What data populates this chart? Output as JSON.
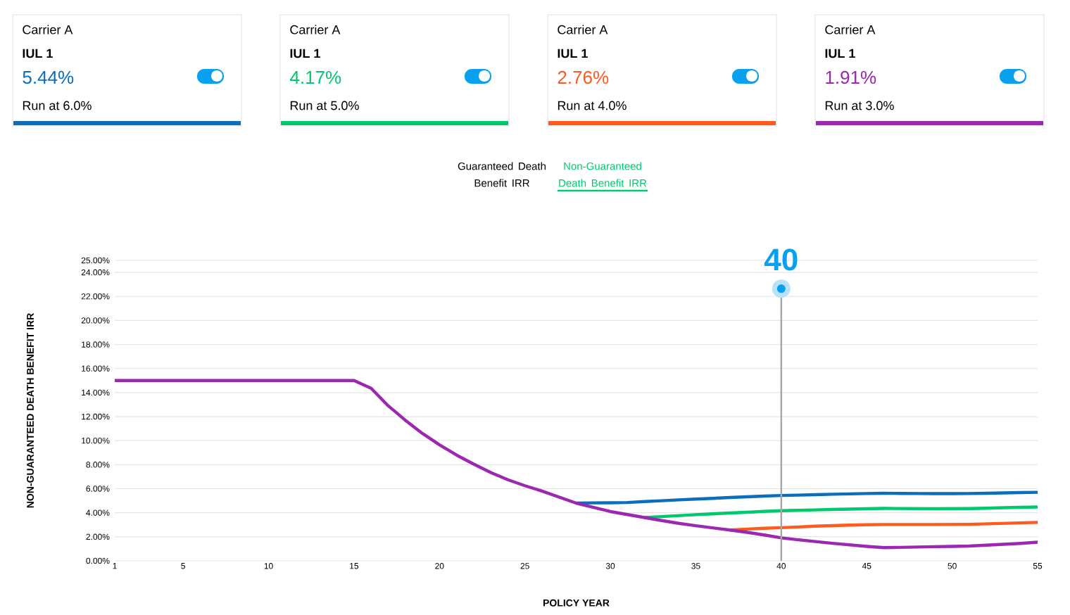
{
  "chart_data": {
    "type": "line",
    "xlabel": "POLICY YEAR",
    "ylabel": "NON-GUARANTEED DEATH BENEFIT IRR",
    "x": [
      1,
      2,
      3,
      4,
      5,
      6,
      7,
      8,
      9,
      10,
      11,
      12,
      13,
      14,
      15,
      16,
      17,
      18,
      19,
      20,
      21,
      22,
      23,
      24,
      25,
      26,
      27,
      28,
      29,
      30,
      31,
      32,
      33,
      34,
      35,
      36,
      37,
      38,
      39,
      40,
      41,
      42,
      43,
      44,
      45,
      46,
      47,
      48,
      49,
      50,
      51,
      52,
      53,
      54,
      55
    ],
    "series": [
      {
        "color": "#0a6ebd",
        "values": [
          null,
          null,
          null,
          null,
          null,
          null,
          null,
          null,
          null,
          null,
          null,
          null,
          null,
          null,
          null,
          null,
          null,
          null,
          null,
          null,
          null,
          null,
          null,
          null,
          null,
          null,
          null,
          4.8,
          4.82,
          4.83,
          4.85,
          4.93,
          5.0,
          5.07,
          5.14,
          5.2,
          5.27,
          5.33,
          5.39,
          5.44,
          5.47,
          5.5,
          5.54,
          5.57,
          5.6,
          5.62,
          5.61,
          5.6,
          5.59,
          5.59,
          5.6,
          5.62,
          5.65,
          5.68,
          5.7
        ]
      },
      {
        "color": "#00c86e",
        "values": [
          null,
          null,
          null,
          null,
          null,
          null,
          null,
          null,
          null,
          null,
          null,
          null,
          null,
          null,
          null,
          null,
          null,
          null,
          null,
          null,
          null,
          null,
          null,
          null,
          null,
          null,
          null,
          null,
          null,
          null,
          null,
          3.6,
          3.68,
          3.76,
          3.84,
          3.91,
          3.98,
          4.04,
          4.11,
          4.17,
          4.2,
          4.24,
          4.27,
          4.3,
          4.33,
          4.36,
          4.35,
          4.34,
          4.33,
          4.34,
          4.35,
          4.38,
          4.42,
          4.45,
          4.48
        ]
      },
      {
        "color": "#ff5a1f",
        "values": [
          null,
          null,
          null,
          null,
          null,
          null,
          null,
          null,
          null,
          null,
          null,
          null,
          null,
          null,
          null,
          null,
          null,
          null,
          null,
          null,
          null,
          null,
          null,
          null,
          null,
          null,
          null,
          null,
          null,
          null,
          null,
          null,
          null,
          null,
          null,
          null,
          2.56,
          2.64,
          2.71,
          2.76,
          2.82,
          2.88,
          2.93,
          2.97,
          3.0,
          3.02,
          3.02,
          3.02,
          3.02,
          3.03,
          3.04,
          3.08,
          3.12,
          3.16,
          3.2
        ]
      },
      {
        "color": "#9c27b0",
        "values": [
          15,
          15,
          15,
          15,
          15,
          15,
          15,
          15,
          15,
          15,
          15,
          15,
          15,
          15,
          15,
          14.36,
          12.9,
          11.7,
          10.6,
          9.65,
          8.8,
          8.05,
          7.35,
          6.75,
          6.25,
          5.8,
          5.3,
          4.8,
          4.45,
          4.1,
          3.85,
          3.6,
          3.35,
          3.12,
          2.92,
          2.74,
          2.56,
          2.37,
          2.15,
          1.91,
          1.75,
          1.6,
          1.46,
          1.33,
          1.2,
          1.1,
          1.12,
          1.15,
          1.18,
          1.2,
          1.23,
          1.3,
          1.38,
          1.45,
          1.55
        ]
      }
    ],
    "xlim": [
      1,
      55
    ],
    "xticks": [
      1,
      5,
      10,
      15,
      20,
      25,
      30,
      35,
      40,
      45,
      50,
      55
    ],
    "ylim": [
      0,
      25
    ],
    "yticks": [
      {
        "value": 0,
        "label": "0.00%"
      },
      {
        "value": 2,
        "label": "2.00%"
      },
      {
        "value": 4,
        "label": "4.00%"
      },
      {
        "value": 6,
        "label": "6.00%"
      },
      {
        "value": 8,
        "label": "8.00%"
      },
      {
        "value": 10,
        "label": "10.00%"
      },
      {
        "value": 12,
        "label": "12.00%"
      },
      {
        "value": 14,
        "label": "14.00%"
      },
      {
        "value": 16,
        "label": "16.00%"
      },
      {
        "value": 18,
        "label": "18.00%"
      },
      {
        "value": 20,
        "label": "20.00%"
      },
      {
        "value": 22,
        "label": "22.00%"
      },
      {
        "value": 24,
        "label": "24.00%"
      },
      {
        "value": 25,
        "label": "25.00%"
      }
    ],
    "grid": "y",
    "ref_lines": [
      {
        "axis": "x",
        "value": 40,
        "label": "40",
        "color": "#a6a6a6"
      }
    ],
    "annotations": [
      "Carrier A",
      "IUL 1",
      "5.44%",
      "Run at 6.0%",
      "Carrier A",
      "IUL 1",
      "4.17%",
      "Run at 5.0%",
      "Carrier A",
      "IUL 1",
      "2.76%",
      "Run at 4.0%",
      "Carrier A",
      "IUL 1",
      "1.91%",
      "Run at 3.0%",
      "Guaranteed Death Benefit IRR",
      "Non-Guaranteed Death Benefit IRR"
    ]
  }
}
